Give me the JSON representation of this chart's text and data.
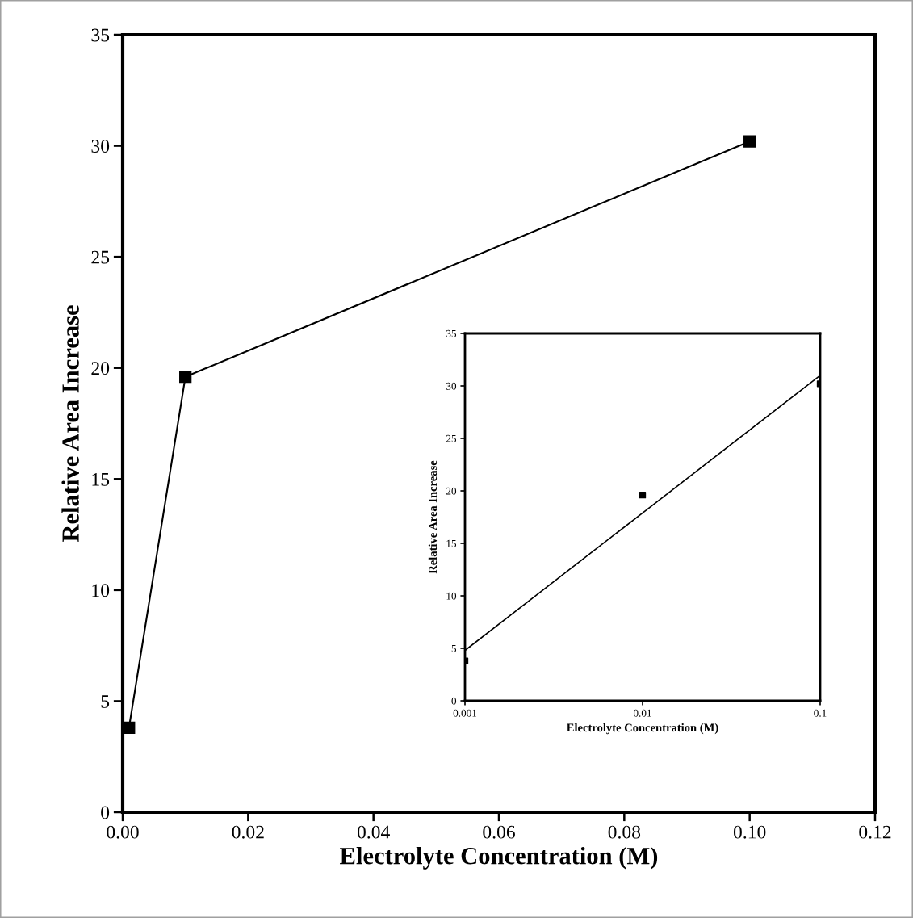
{
  "chart_data": [
    {
      "type": "line",
      "xlabel": "Electrolyte Concentration (M)",
      "ylabel": "Relative Area Increase",
      "marker": "square",
      "line_style": "solid",
      "xlim": [
        0,
        0.12
      ],
      "xticks": [
        {
          "value": 0,
          "label": "0.00"
        },
        {
          "value": 0.02,
          "label": "0.02"
        },
        {
          "value": 0.04,
          "label": "0.04"
        },
        {
          "value": 0.06,
          "label": "0.06"
        },
        {
          "value": 0.08,
          "label": "0.08"
        },
        {
          "value": 0.1,
          "label": "0.10"
        },
        {
          "value": 0.12,
          "label": "0.12"
        }
      ],
      "ylim": [
        0,
        35
      ],
      "yticks": [
        0,
        5,
        10,
        15,
        20,
        25,
        30,
        35
      ],
      "series": [
        {
          "color": "#000000",
          "x": [
            0.001,
            0.01,
            0.1
          ],
          "values": [
            3.8,
            19.6,
            30.2
          ]
        }
      ]
    },
    {
      "type": "scatter",
      "xlabel": "Electrolyte Concentration (M)",
      "ylabel": "Relative Area Increase",
      "marker": "square",
      "log": "x",
      "xlim": [
        0.001,
        0.1
      ],
      "xticks": [
        0.001,
        0.01,
        0.1
      ],
      "ylim": [
        0,
        35
      ],
      "yticks": [
        0,
        5,
        10,
        15,
        20,
        25,
        30,
        35
      ],
      "series": [
        {
          "color": "#000000",
          "x": [
            0.001,
            0.01,
            0.1
          ],
          "values": [
            3.8,
            19.6,
            30.2
          ]
        },
        {
          "type": "line",
          "marker": "none",
          "line_style": "solid",
          "color": "#000000",
          "x": [
            0.001,
            0.01,
            0.1
          ],
          "values": [
            4.8,
            17.9,
            31.0
          ]
        }
      ]
    }
  ]
}
